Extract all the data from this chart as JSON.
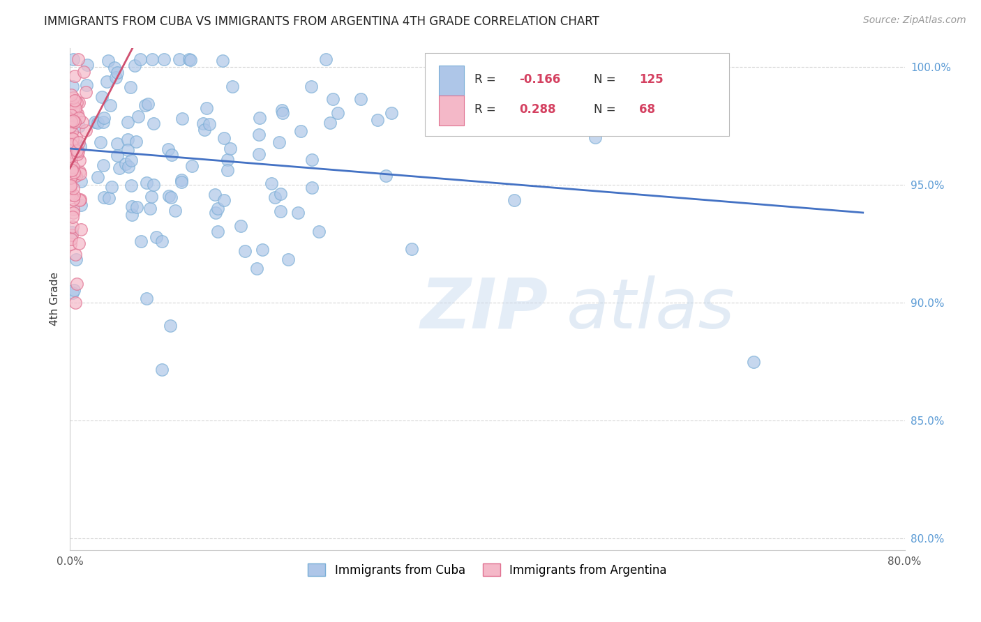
{
  "title": "IMMIGRANTS FROM CUBA VS IMMIGRANTS FROM ARGENTINA 4TH GRADE CORRELATION CHART",
  "source": "Source: ZipAtlas.com",
  "ylabel": "4th Grade",
  "x_label_cuba": "Immigrants from Cuba",
  "x_label_argentina": "Immigrants from Argentina",
  "xlim": [
    0.0,
    0.8
  ],
  "ylim": [
    0.795,
    1.008
  ],
  "x_ticks": [
    0.0,
    0.1,
    0.2,
    0.3,
    0.4,
    0.5,
    0.6,
    0.7,
    0.8
  ],
  "x_tick_labels": [
    "0.0%",
    "",
    "",
    "",
    "",
    "",
    "",
    "",
    "80.0%"
  ],
  "y_ticks": [
    0.8,
    0.85,
    0.9,
    0.95,
    1.0
  ],
  "y_tick_labels": [
    "80.0%",
    "85.0%",
    "90.0%",
    "95.0%",
    "100.0%"
  ],
  "cuba_color": "#aec6e8",
  "cuba_edge_color": "#7aaed6",
  "argentina_color": "#f4b8c8",
  "argentina_edge_color": "#e07090",
  "trend_cuba_color": "#4472c4",
  "trend_argentina_color": "#d05070",
  "legend_box_cuba": "#aec6e8",
  "legend_box_argentina": "#f4b8c8",
  "R_cuba": -0.166,
  "N_cuba": 125,
  "R_argentina": 0.288,
  "N_argentina": 68,
  "watermark_zip": "ZIP",
  "watermark_atlas": "atlas",
  "background_color": "#ffffff",
  "grid_color": "#cccccc",
  "title_fontsize": 12,
  "source_fontsize": 10,
  "tick_fontsize": 11,
  "ylabel_fontsize": 11,
  "ytick_color": "#5b9bd5",
  "xtick_color": "#555555"
}
